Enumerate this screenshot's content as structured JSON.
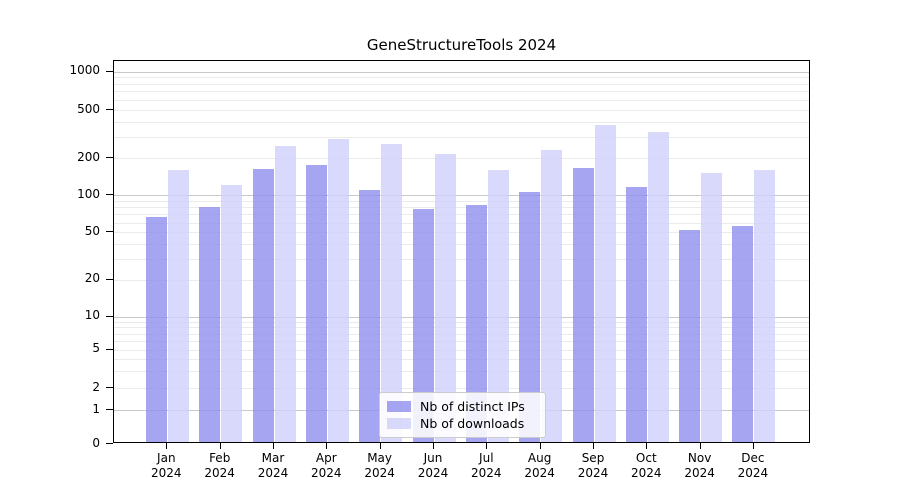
{
  "chart_data": {
    "type": "bar",
    "title": "GeneStructureTools 2024",
    "categories": [
      "Jan 2024",
      "Feb 2024",
      "Mar 2024",
      "Apr 2024",
      "May 2024",
      "Jun 2024",
      "Jul 2024",
      "Aug 2024",
      "Sep 2024",
      "Oct 2024",
      "Nov 2024",
      "Dec 2024"
    ],
    "series": [
      {
        "name": "Nb of distinct IPs",
        "color": "#8f8fee",
        "alpha": 0.8,
        "values": [
          64,
          78,
          158,
          170,
          107,
          75,
          80,
          102,
          160,
          112,
          50,
          54
        ]
      },
      {
        "name": "Nb of downloads",
        "color": "#cfcffa",
        "alpha": 0.8,
        "values": [
          155,
          118,
          242,
          276,
          252,
          210,
          156,
          226,
          362,
          320,
          147,
          156
        ]
      }
    ],
    "yscale": "symlog",
    "ytick_values": [
      0,
      1,
      2,
      5,
      10,
      20,
      50,
      100,
      200,
      500,
      1000
    ],
    "ytick_labels": [
      "0",
      "1",
      "2",
      "5",
      "10",
      "20",
      "50",
      "100",
      "200",
      "500",
      "1000"
    ],
    "ylim": [
      0,
      1200
    ],
    "xlabel": "",
    "ylabel": "",
    "grid": "on",
    "grid_major_values": [
      1,
      10,
      100,
      1000
    ],
    "legend_position": "lower center",
    "background_color": "#ffffff",
    "axis_color": "#000000"
  }
}
